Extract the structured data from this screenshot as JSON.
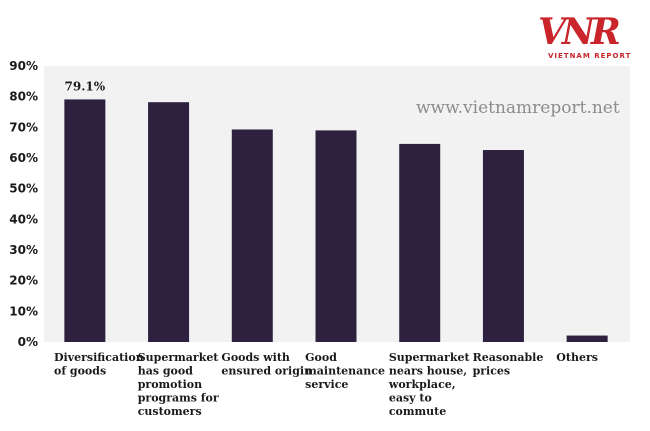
{
  "brand": {
    "logo_text": "VNR",
    "logo_subtitle": "VIETNAM REPORT",
    "watermark": "www.vietnamreport.net",
    "logo_color": "#c9252b"
  },
  "chart_data": {
    "type": "bar",
    "title": "",
    "xlabel": "",
    "ylabel": "",
    "categories": [
      [
        "Diversification",
        "of goods"
      ],
      [
        "Supermarket",
        "has good",
        "promotion",
        "programs for",
        "customers"
      ],
      [
        "Goods with",
        "ensured origin"
      ],
      [
        "Good",
        "maintenance",
        "service"
      ],
      [
        "Supermarket",
        "nears house,",
        "workplace,",
        "easy to",
        "commute"
      ],
      [
        "Reasonable",
        "prices"
      ],
      [
        "Others"
      ]
    ],
    "values": [
      79.1,
      78.2,
      69.3,
      69.0,
      64.6,
      62.6,
      2.1
    ],
    "data_labels": [
      "79.1%",
      "",
      "",
      "",
      "",
      "",
      ""
    ],
    "ylim": [
      0,
      90
    ],
    "yticks": [
      "0%",
      "10%",
      "20%",
      "30%",
      "40%",
      "50%",
      "60%",
      "70%",
      "80%",
      "90%"
    ],
    "grid": false,
    "legend": "none",
    "bar_color": "#2e2140",
    "plot_background": "#f2f2f2"
  }
}
